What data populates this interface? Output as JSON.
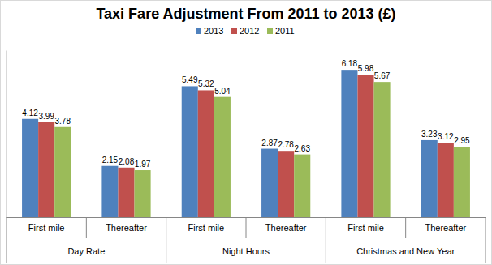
{
  "chart_data": {
    "type": "bar",
    "title": "Taxi Fare Adjustment From 2011 to 2013 (£)",
    "categories": [
      "First mile",
      "Thereafter",
      "First mile",
      "Thereafter",
      "First mile",
      "Thereafter"
    ],
    "groups": [
      "Day Rate",
      "Night Hours",
      "Christmas and New Year"
    ],
    "series": [
      {
        "name": "2013",
        "color": "#4f81bd",
        "values": [
          4.12,
          2.15,
          5.49,
          2.87,
          6.18,
          3.23
        ]
      },
      {
        "name": "2012",
        "color": "#c0504d",
        "values": [
          3.99,
          2.08,
          5.32,
          2.78,
          5.98,
          3.12
        ]
      },
      {
        "name": "2011",
        "color": "#9bbb59",
        "values": [
          3.78,
          1.97,
          5.04,
          2.63,
          5.67,
          2.95
        ]
      }
    ],
    "ylim": [
      0,
      7
    ],
    "grid": false,
    "legend": "top",
    "data_labels": true,
    "tick_labels": "x"
  }
}
